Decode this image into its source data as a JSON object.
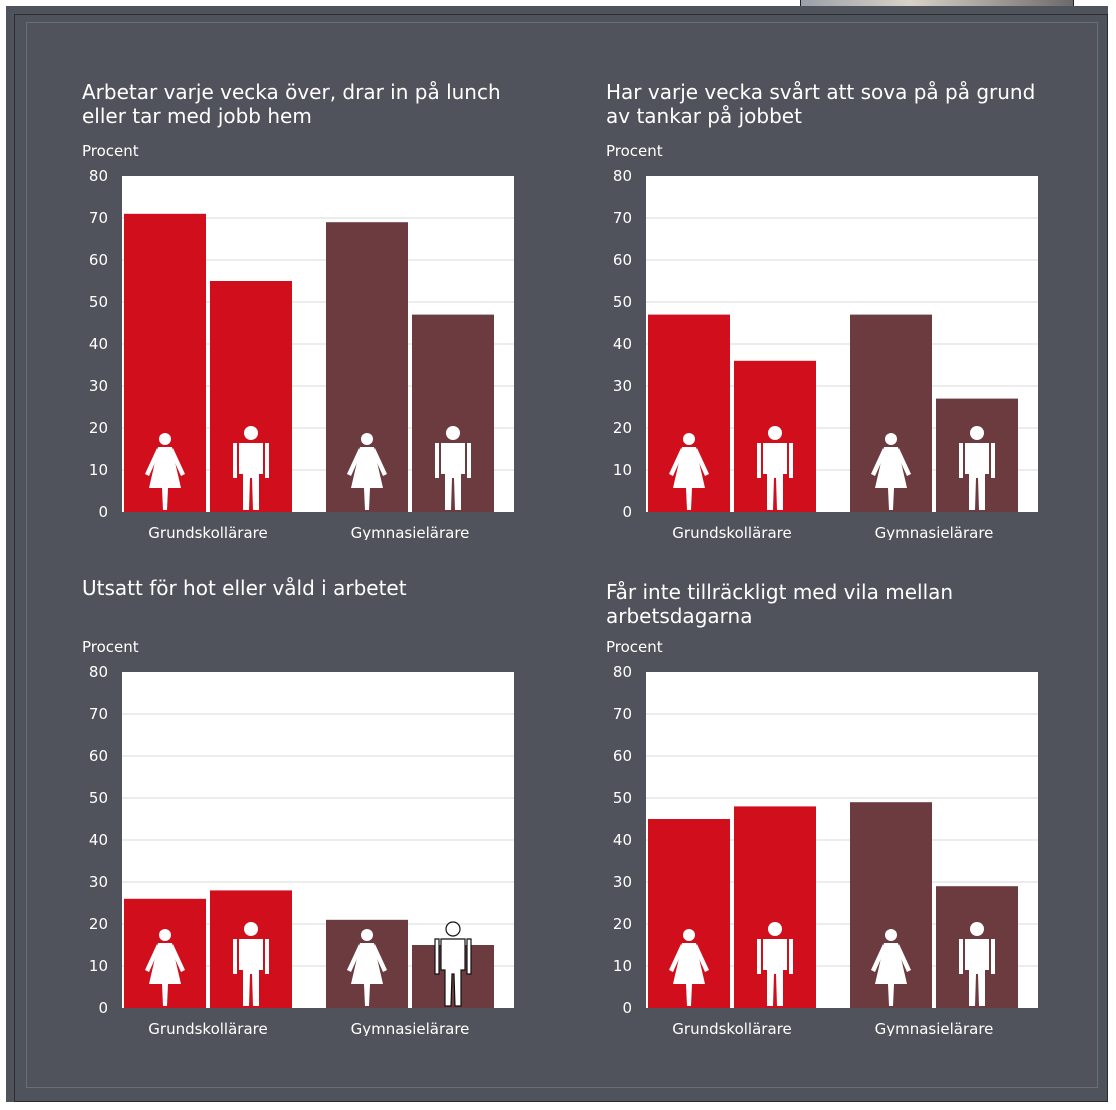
{
  "colors": {
    "background": "#4f535b",
    "grundskola_bar": "#d10f1c",
    "gymnasie_bar": "#6b3b40",
    "plot_background": "#ffffff",
    "grid": "#d9d9d9",
    "text": "#ffffff"
  },
  "icons": {
    "female": "female-figure-icon",
    "male": "male-figure-icon"
  },
  "chart_data": [
    {
      "type": "bar",
      "title": "Arbetar varje vecka över, drar in på lunch eller tar med jobb hem",
      "ylabel": "Procent",
      "ylim": [
        0,
        80
      ],
      "yticks": [
        0,
        10,
        20,
        30,
        40,
        50,
        60,
        70,
        80
      ],
      "categories": [
        "Grundskollärare",
        "Gymnasielärare"
      ],
      "values": [
        [
          71,
          55
        ],
        [
          69,
          47
        ]
      ],
      "grid": true
    },
    {
      "type": "bar",
      "title": "Har varje vecka svårt att sova på på grund av tankar på jobbet",
      "ylabel": "Procent",
      "ylim": [
        0,
        80
      ],
      "yticks": [
        0,
        10,
        20,
        30,
        40,
        50,
        60,
        70,
        80
      ],
      "categories": [
        "Grundskollärare",
        "Gymnasielärare"
      ],
      "values": [
        [
          47,
          36
        ],
        [
          47,
          27
        ]
      ],
      "grid": true
    },
    {
      "type": "bar",
      "title": "Utsatt för hot eller våld i arbetet",
      "ylabel": "Procent",
      "ylim": [
        0,
        80
      ],
      "yticks": [
        0,
        10,
        20,
        30,
        40,
        50,
        60,
        70,
        80
      ],
      "categories": [
        "Grundskollärare",
        "Gymnasielärare"
      ],
      "values": [
        [
          26,
          28
        ],
        [
          21,
          15
        ]
      ],
      "grid": true
    },
    {
      "type": "bar",
      "title": "Får inte tillräckligt med vila mellan arbetsdagarna",
      "ylabel": "Procent",
      "ylim": [
        0,
        80
      ],
      "yticks": [
        0,
        10,
        20,
        30,
        40,
        50,
        60,
        70,
        80
      ],
      "categories": [
        "Grundskollärare",
        "Gymnasielärare"
      ],
      "values": [
        [
          45,
          48
        ],
        [
          49,
          29
        ]
      ],
      "grid": true
    }
  ]
}
